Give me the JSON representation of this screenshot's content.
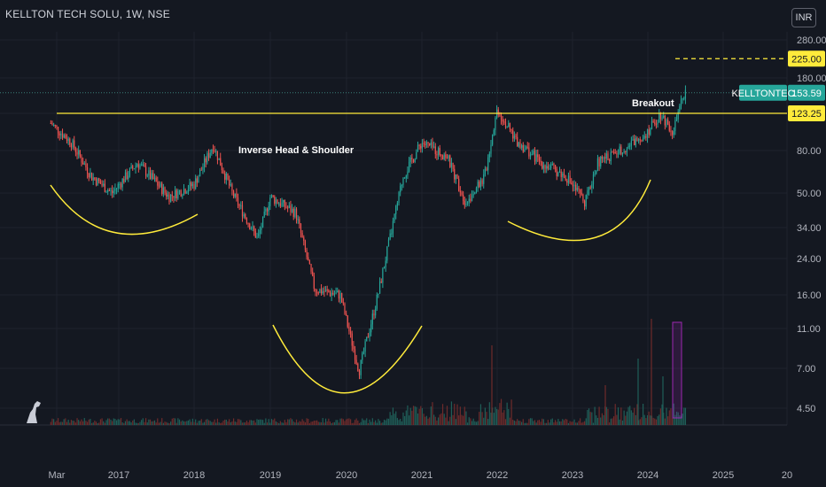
{
  "header": {
    "title": "KELLTON TECH SOLU, 1W, NSE",
    "currency": "INR"
  },
  "chart_data": {
    "type": "candlestick",
    "symbol": "KELLTONTEC",
    "interval": "1W",
    "exchange": "NSE",
    "scale": "log",
    "y_ticks": [
      "280.00",
      "180.00",
      "123.25",
      "80.00",
      "50.00",
      "34.00",
      "24.00",
      "16.00",
      "11.00",
      "7.00",
      "4.50"
    ],
    "x_ticks": [
      "Mar",
      "2017",
      "2018",
      "2019",
      "2020",
      "2021",
      "2022",
      "2023",
      "2024",
      "2025",
      "20"
    ],
    "last_price": {
      "label": "KELLTONTEC",
      "value": "153.59",
      "color": "#26a69a"
    },
    "target": {
      "value": "225.00",
      "color": "#ffeb3b"
    },
    "resistance": {
      "value": "123.25",
      "color": "#ffeb3b"
    },
    "annotations": {
      "pattern": "Inverse Head & Shoulder",
      "breakout": "Breakout"
    },
    "approx_price_path": [
      {
        "date": "2016-03",
        "price": 110
      },
      {
        "date": "2016-06",
        "price": 88
      },
      {
        "date": "2016-09",
        "price": 60
      },
      {
        "date": "2016-12",
        "price": 50
      },
      {
        "date": "2017-04",
        "price": 70
      },
      {
        "date": "2017-09",
        "price": 48
      },
      {
        "date": "2018-01",
        "price": 55
      },
      {
        "date": "2018-04",
        "price": 85
      },
      {
        "date": "2018-07",
        "price": 50
      },
      {
        "date": "2018-11",
        "price": 30
      },
      {
        "date": "2019-01",
        "price": 48
      },
      {
        "date": "2019-05",
        "price": 40
      },
      {
        "date": "2019-08",
        "price": 17
      },
      {
        "date": "2019-12",
        "price": 16
      },
      {
        "date": "2020-03",
        "price": 6.8
      },
      {
        "date": "2020-06",
        "price": 16
      },
      {
        "date": "2020-10",
        "price": 60
      },
      {
        "date": "2021-01",
        "price": 88
      },
      {
        "date": "2021-05",
        "price": 75
      },
      {
        "date": "2021-08",
        "price": 45
      },
      {
        "date": "2021-11",
        "price": 60
      },
      {
        "date": "2022-01",
        "price": 130
      },
      {
        "date": "2022-04",
        "price": 90
      },
      {
        "date": "2022-08",
        "price": 70
      },
      {
        "date": "2022-12",
        "price": 60
      },
      {
        "date": "2023-03",
        "price": 45
      },
      {
        "date": "2023-05",
        "price": 70
      },
      {
        "date": "2023-10",
        "price": 85
      },
      {
        "date": "2024-01",
        "price": 100
      },
      {
        "date": "2024-03",
        "price": 123
      },
      {
        "date": "2024-05",
        "price": 100
      },
      {
        "date": "2024-07",
        "price": 160
      }
    ],
    "colors": {
      "up": "#26a69a",
      "down": "#ef5350",
      "pattern": "#ffeb3b",
      "background": "#141821"
    }
  }
}
